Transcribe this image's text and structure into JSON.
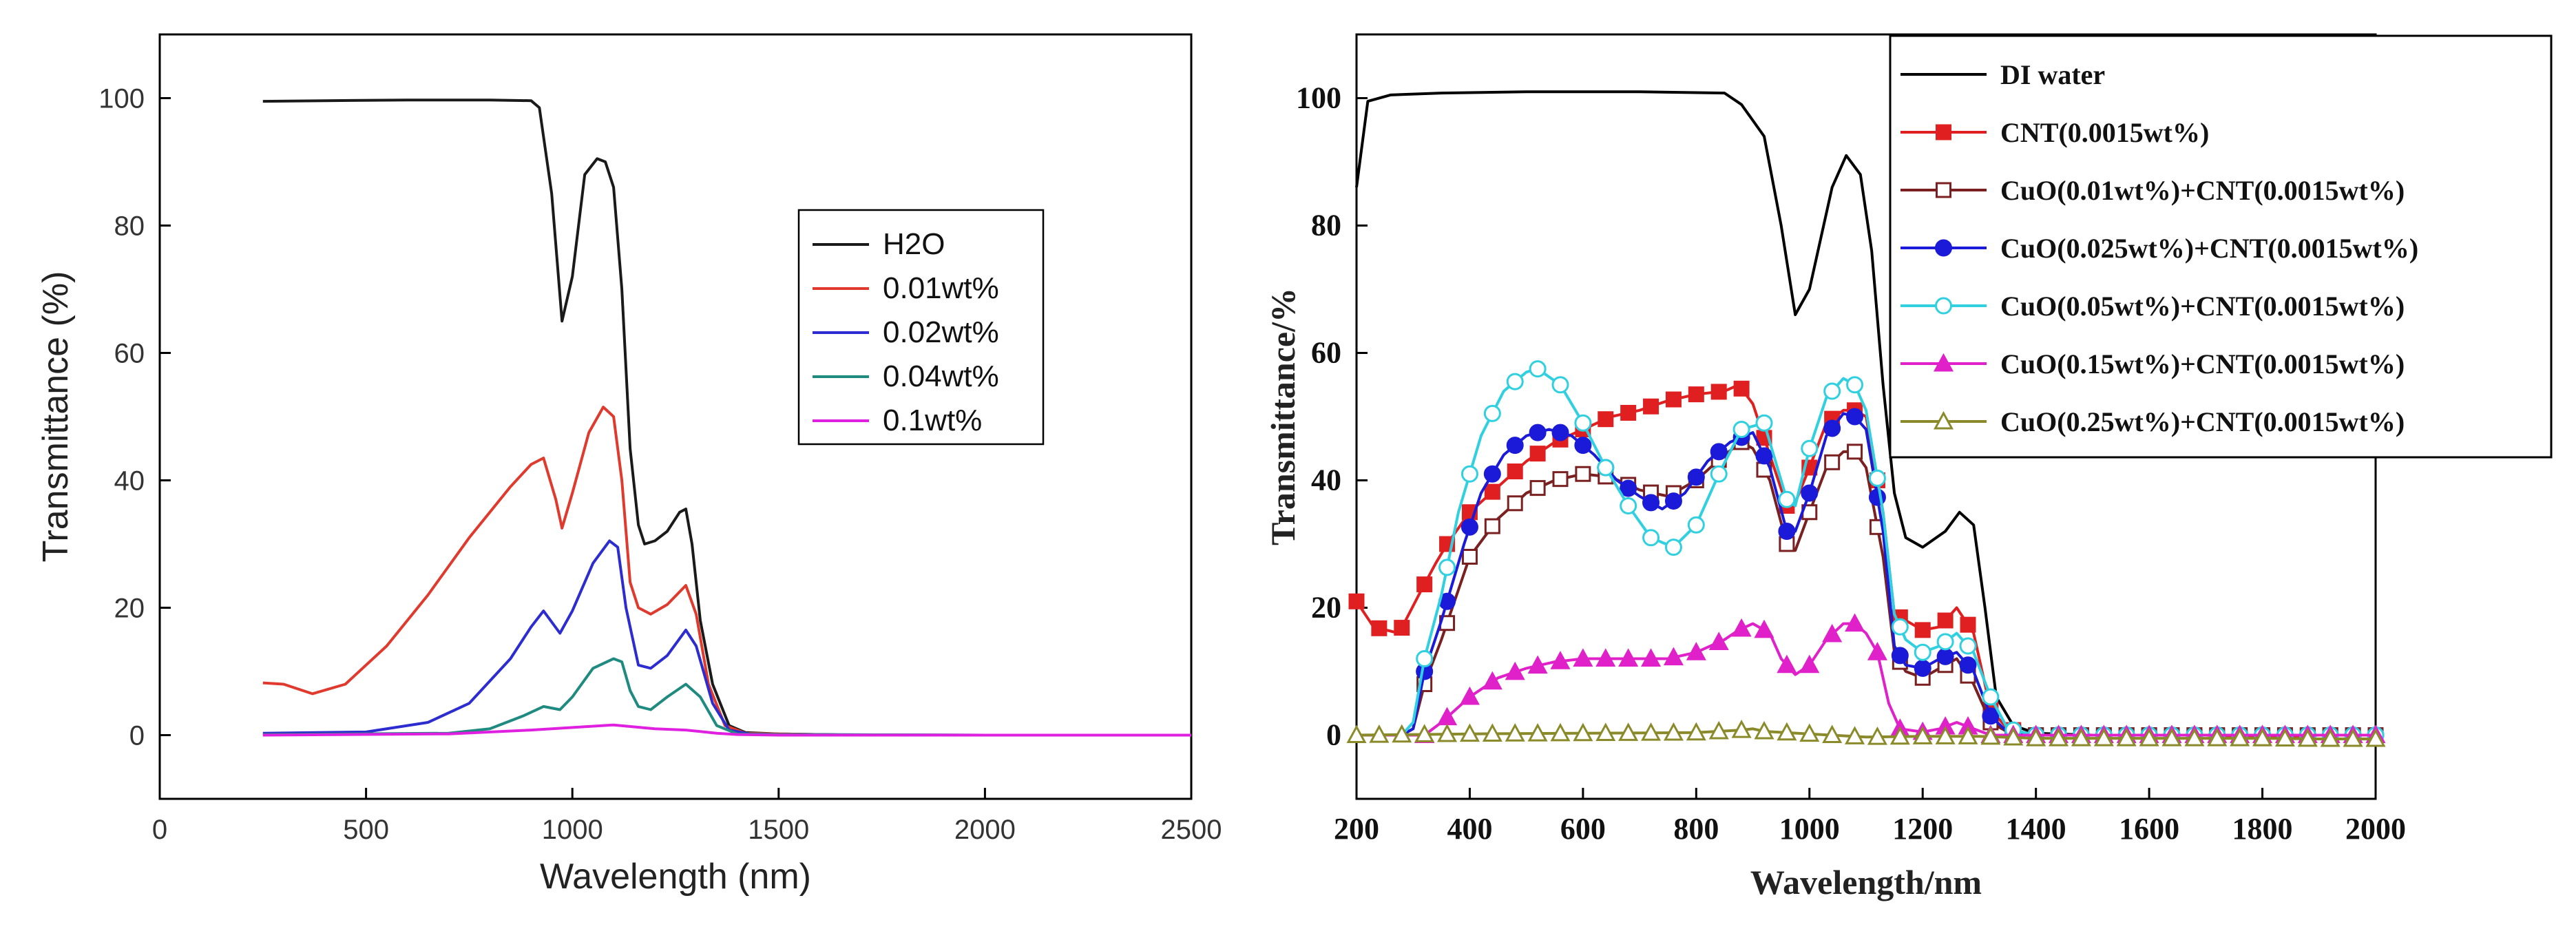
{
  "chart_data": [
    {
      "type": "line",
      "xlabel": "Wavelength (nm)",
      "ylabel": "Transmittance (%)",
      "xlim": [
        0,
        2500
      ],
      "ylim": [
        -10,
        110
      ],
      "xticks": [
        0,
        500,
        1000,
        1500,
        2000,
        2500
      ],
      "yticks": [
        0,
        20,
        40,
        60,
        80,
        100
      ],
      "grid": false,
      "legend_position": "center-right",
      "series": [
        {
          "name": "H2O",
          "color": "#1a1a1a",
          "x": [
            250,
            400,
            600,
            800,
            900,
            920,
            950,
            975,
            1000,
            1030,
            1060,
            1080,
            1100,
            1120,
            1140,
            1160,
            1175,
            1200,
            1230,
            1260,
            1275,
            1290,
            1310,
            1340,
            1380,
            1420,
            1500,
            1700,
            2000,
            2500
          ],
          "y": [
            99.5,
            99.6,
            99.7,
            99.7,
            99.6,
            98.5,
            85,
            65,
            72,
            88,
            90.5,
            90,
            86,
            70,
            45,
            33,
            30,
            30.5,
            32,
            35,
            35.5,
            30,
            18,
            8,
            1.5,
            0.4,
            0.2,
            0,
            0,
            0
          ]
        },
        {
          "name": "0.01wt%",
          "color": "#e03a2e",
          "x": [
            250,
            300,
            370,
            450,
            550,
            650,
            750,
            850,
            900,
            930,
            960,
            975,
            1000,
            1040,
            1075,
            1100,
            1120,
            1140,
            1160,
            1190,
            1230,
            1275,
            1300,
            1330,
            1370,
            1420,
            1500,
            1700,
            2000,
            2500
          ],
          "y": [
            8.2,
            8,
            6.5,
            8,
            14,
            22,
            31,
            39,
            42.5,
            43.5,
            37,
            32.5,
            38,
            47.5,
            51.5,
            50,
            40,
            24,
            20,
            19,
            20.5,
            23.5,
            19,
            8,
            1.5,
            0.3,
            0.2,
            0,
            0,
            0
          ]
        },
        {
          "name": "0.02wt%",
          "color": "#2c2cd0",
          "x": [
            250,
            500,
            650,
            750,
            850,
            900,
            930,
            970,
            1000,
            1050,
            1090,
            1110,
            1130,
            1160,
            1190,
            1230,
            1275,
            1300,
            1340,
            1380,
            1430,
            1500,
            2000,
            2500
          ],
          "y": [
            0.3,
            0.5,
            2,
            5,
            12,
            17,
            19.5,
            16,
            19.5,
            27,
            30.5,
            29.5,
            20,
            11,
            10.5,
            12.5,
            16.5,
            14,
            5,
            0.8,
            0.2,
            0.1,
            0,
            0
          ]
        },
        {
          "name": "0.04wt%",
          "color": "#1f8a80",
          "x": [
            250,
            700,
            800,
            880,
            930,
            970,
            1000,
            1050,
            1100,
            1120,
            1140,
            1160,
            1190,
            1230,
            1275,
            1310,
            1350,
            1400,
            1500,
            2000,
            2500
          ],
          "y": [
            0.1,
            0.3,
            1,
            3,
            4.5,
            4,
            6,
            10.5,
            12,
            11.5,
            7,
            4.5,
            4,
            6,
            8,
            6,
            1.5,
            0.2,
            0.1,
            0,
            0
          ]
        },
        {
          "name": "0.1wt%",
          "color": "#e020e0",
          "x": [
            250,
            700,
            900,
            1000,
            1100,
            1150,
            1200,
            1275,
            1350,
            1400,
            1500,
            2000,
            2500
          ],
          "y": [
            0,
            0.2,
            0.8,
            1.2,
            1.6,
            1.3,
            1,
            0.8,
            0.3,
            0.1,
            0,
            0,
            0
          ]
        }
      ]
    },
    {
      "type": "line",
      "xlabel": "Wavelength/nm",
      "ylabel": "Transmittance/%",
      "xlim": [
        200,
        2000
      ],
      "ylim": [
        -10,
        110
      ],
      "xticks": [
        200,
        400,
        600,
        800,
        1000,
        1200,
        1400,
        1600,
        1800,
        2000
      ],
      "yticks": [
        0,
        20,
        40,
        60,
        80,
        100
      ],
      "grid": false,
      "legend_position": "top-right",
      "series": [
        {
          "name": "DI water",
          "color": "#000000",
          "marker": "none",
          "x": [
            200,
            220,
            260,
            350,
            500,
            700,
            850,
            880,
            920,
            950,
            975,
            1000,
            1040,
            1065,
            1090,
            1110,
            1130,
            1150,
            1170,
            1200,
            1240,
            1265,
            1290,
            1310,
            1330,
            1360,
            1400,
            1500,
            2000
          ],
          "y": [
            86,
            99.5,
            100.5,
            100.8,
            101,
            101,
            100.8,
            99,
            94,
            80,
            66,
            70,
            86,
            91,
            88,
            76,
            55,
            38,
            31,
            29.5,
            32,
            35,
            33,
            20,
            6,
            1.5,
            0.3,
            0,
            0
          ]
        },
        {
          "name": "CNT(0.0015wt%)",
          "color": "#e02020",
          "marker": "square-filled",
          "x": [
            200,
            230,
            275,
            310,
            340,
            360,
            400,
            450,
            500,
            550,
            600,
            650,
            700,
            750,
            800,
            850,
            875,
            900,
            930,
            960,
            975,
            1000,
            1030,
            1060,
            1080,
            1100,
            1130,
            1150,
            1170,
            1200,
            1230,
            1260,
            1290,
            1320,
            1350,
            1400,
            1500,
            1600,
            1700,
            1800,
            1900,
            2000
          ],
          "y": [
            21,
            17,
            16,
            22,
            27,
            30,
            35,
            39,
            43,
            46,
            48,
            50,
            51,
            52.5,
            53.5,
            54,
            55,
            52,
            44,
            36,
            36.5,
            42,
            49,
            51,
            51,
            50,
            35,
            19,
            18,
            16.5,
            17,
            20,
            16,
            4,
            1,
            0,
            0,
            0,
            0,
            -0.5,
            0,
            0
          ]
        },
        {
          "name": "CuO(0.01wt%)+CNT(0.0015wt%)",
          "color": "#7a2020",
          "marker": "square-open",
          "x": [
            200,
            280,
            300,
            320,
            350,
            400,
            450,
            500,
            550,
            600,
            650,
            700,
            750,
            800,
            850,
            880,
            900,
            930,
            960,
            975,
            1000,
            1030,
            1060,
            1080,
            1100,
            1130,
            1150,
            1170,
            1200,
            1230,
            1260,
            1290,
            1320,
            1350,
            1400,
            1500,
            1600,
            1700,
            1800,
            1900,
            2000
          ],
          "y": [
            0,
            0,
            1,
            8,
            15,
            28,
            34,
            38,
            40,
            41,
            40.5,
            38.5,
            37.5,
            40,
            44,
            46,
            45,
            40,
            30,
            29,
            35,
            42,
            44.5,
            44.5,
            42,
            28,
            13,
            10,
            9,
            10.5,
            12,
            8,
            2,
            0.5,
            0,
            0,
            0,
            0,
            0,
            0,
            0
          ]
        },
        {
          "name": "CuO(0.025wt%)+CNT(0.0015wt%)",
          "color": "#1a1ad8",
          "marker": "circle-filled",
          "x": [
            200,
            280,
            300,
            320,
            350,
            390,
            420,
            460,
            500,
            540,
            580,
            620,
            660,
            700,
            740,
            780,
            820,
            860,
            900,
            930,
            960,
            975,
            1000,
            1030,
            1060,
            1080,
            1100,
            1130,
            1150,
            1170,
            1200,
            1230,
            1260,
            1290,
            1320,
            1350,
            1400,
            1500,
            1600,
            1700,
            1800,
            1900,
            2000
          ],
          "y": [
            0,
            0,
            1,
            10,
            18,
            30,
            38,
            44,
            47,
            48,
            47,
            44,
            40,
            37.5,
            35.5,
            38,
            43,
            46,
            47.5,
            42,
            32,
            32,
            38,
            47,
            50.5,
            50,
            48,
            32,
            14,
            11,
            10.5,
            12,
            13,
            10,
            3,
            0.5,
            0,
            0,
            0,
            0,
            0,
            0,
            0
          ]
        },
        {
          "name": "CuO(0.05wt%)+CNT(0.0015wt%)",
          "color": "#30d0e0",
          "marker": "circle-open",
          "x": [
            200,
            280,
            300,
            320,
            350,
            380,
            420,
            460,
            500,
            520,
            560,
            600,
            640,
            680,
            720,
            760,
            800,
            840,
            880,
            920,
            960,
            975,
            1000,
            1030,
            1060,
            1080,
            1100,
            1130,
            1150,
            1170,
            1200,
            1230,
            1260,
            1290,
            1320,
            1350,
            1400,
            1500,
            1600,
            1700,
            1800,
            1900,
            2000
          ],
          "y": [
            0,
            0,
            2,
            12,
            22,
            35,
            47,
            54,
            57,
            57.5,
            55,
            49,
            42,
            36,
            31,
            29.5,
            33,
            41,
            48,
            49,
            37,
            36,
            45,
            53,
            56,
            55,
            51,
            35,
            19,
            15,
            13,
            14,
            16,
            13,
            6,
            1,
            0,
            0,
            0,
            0,
            0,
            0,
            0
          ]
        },
        {
          "name": "CuO(0.15wt%)+CNT(0.0015wt%)",
          "color": "#e020c8",
          "marker": "triangle-filled",
          "x": [
            200,
            300,
            320,
            350,
            400,
            450,
            500,
            550,
            600,
            650,
            700,
            750,
            800,
            850,
            875,
            900,
            930,
            950,
            975,
            1000,
            1030,
            1060,
            1080,
            1100,
            1120,
            1140,
            1160,
            1200,
            1230,
            1260,
            1290,
            1320,
            1350,
            1400,
            1500,
            2000
          ],
          "y": [
            0,
            0,
            0,
            2,
            6,
            9,
            10.5,
            11.5,
            12,
            12,
            12,
            12,
            13,
            15,
            16.5,
            17.5,
            16,
            12,
            9.5,
            11,
            15,
            17.5,
            17.5,
            16,
            13,
            5,
            1,
            0.5,
            1,
            2,
            1,
            0,
            0,
            0,
            0,
            0
          ]
        },
        {
          "name": "CuO(0.25wt%)+CNT(0.0015wt%)",
          "color": "#8a8a2a",
          "marker": "triangle-open",
          "x": [
            200,
            400,
            600,
            800,
            880,
            900,
            920,
            1000,
            1100,
            1200,
            1300,
            1400,
            1500,
            1600,
            1700,
            1800,
            1900,
            2000
          ],
          "y": [
            0,
            0.2,
            0.3,
            0.4,
            0.8,
            1,
            0.6,
            0.2,
            -0.3,
            -0.2,
            -0.2,
            -0.5,
            -0.5,
            -0.5,
            -0.5,
            -0.5,
            -0.6,
            -0.6
          ]
        }
      ]
    }
  ]
}
